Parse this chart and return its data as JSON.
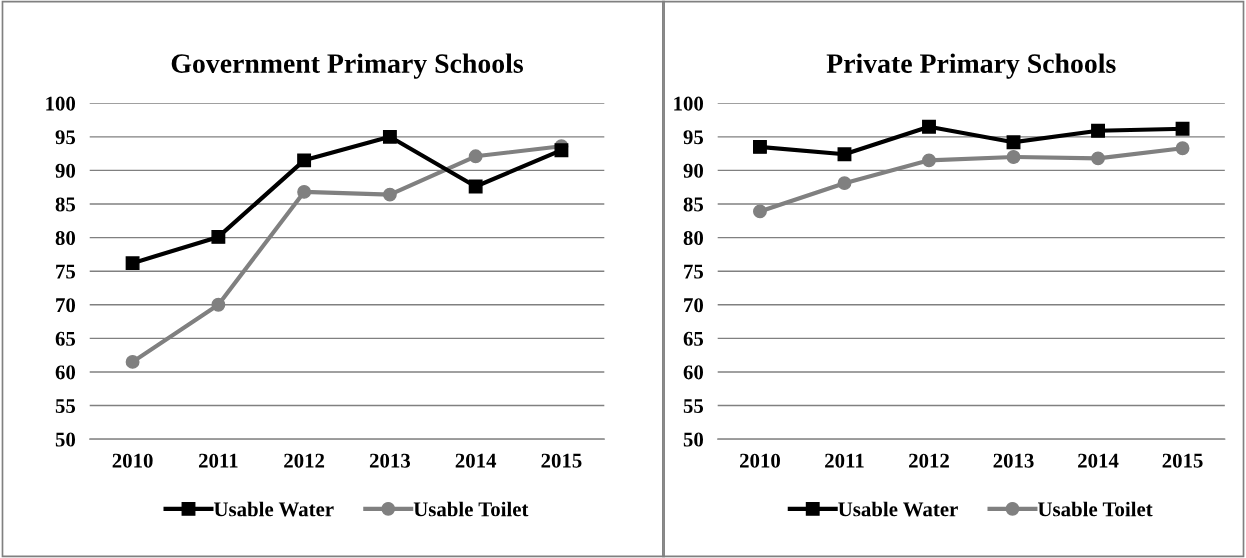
{
  "chart_data": [
    {
      "type": "line",
      "title": "Government Primary Schools",
      "categories": [
        "2010",
        "2011",
        "2012",
        "2013",
        "2014",
        "2015"
      ],
      "ylim": [
        50,
        100
      ],
      "yticks": [
        50,
        55,
        60,
        65,
        70,
        75,
        80,
        85,
        90,
        95,
        100
      ],
      "grid": "y",
      "legend": "bottom",
      "line_style": "solid",
      "series": [
        {
          "name": "Usable Water",
          "color": "#000000",
          "marker": "square",
          "values": [
            76.2,
            80.1,
            91.5,
            95,
            87.6,
            93
          ]
        },
        {
          "name": "Usable Toilet",
          "color": "#808080",
          "marker": "circle",
          "values": [
            61.5,
            70,
            86.8,
            86.4,
            92.1,
            93.6
          ]
        }
      ]
    },
    {
      "type": "line",
      "title": "Private Primary Schools",
      "categories": [
        "2010",
        "2011",
        "2012",
        "2013",
        "2014",
        "2015"
      ],
      "ylim": [
        50,
        100
      ],
      "yticks": [
        50,
        55,
        60,
        65,
        70,
        75,
        80,
        85,
        90,
        95,
        100
      ],
      "grid": "y",
      "legend": "bottom",
      "line_style": "solid",
      "series": [
        {
          "name": "Usable Water",
          "color": "#000000",
          "marker": "square",
          "values": [
            93.5,
            92.4,
            96.5,
            94.2,
            95.9,
            96.2
          ]
        },
        {
          "name": "Usable Toilet",
          "color": "#808080",
          "marker": "circle",
          "values": [
            83.9,
            88.1,
            91.5,
            92,
            91.8,
            93.3
          ]
        }
      ]
    }
  ]
}
